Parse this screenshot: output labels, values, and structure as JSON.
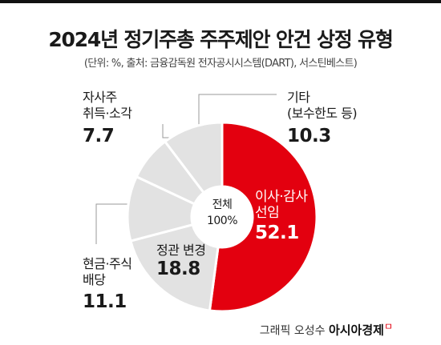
{
  "header": {
    "title": "2024년 정기주총 주주제안 안건 상정 유형",
    "subtitle": "(단위: %, 출처: 금융감독원 전자공시시스템(DART), 서스틴베스트)"
  },
  "center": {
    "line1": "전체",
    "line2": "100%"
  },
  "colors": {
    "highlight": "#e3000f",
    "other": "#e2e2e2",
    "separator": "#ffffff"
  },
  "chart_data": {
    "type": "pie",
    "title": "2024년 정기주총 주주제안 안건 상정 유형",
    "subtitle": "(단위: %, 출처: 금융감독원 전자공시시스템(DART), 서스틴베스트)",
    "unit": "%",
    "total_label": "전체 100%",
    "slices": [
      {
        "label": "이사·감사 선임",
        "lines": [
          "이사·감사",
          "선임"
        ],
        "value": 52.1,
        "highlight": true
      },
      {
        "label": "정관 변경",
        "lines": [
          "정관 변경"
        ],
        "value": 18.8,
        "highlight": false
      },
      {
        "label": "현금·주식 배당",
        "lines": [
          "현금·주식",
          "배당"
        ],
        "value": 11.1,
        "highlight": false
      },
      {
        "label": "자사주 취득·소각",
        "lines": [
          "자사주",
          "취득·소각"
        ],
        "value": 7.7,
        "highlight": false
      },
      {
        "label": "기타 (보수한도 등)",
        "lines": [
          "기타",
          "(보수한도 등)"
        ],
        "value": 10.3,
        "highlight": false
      }
    ]
  },
  "footer": {
    "credit": "그래픽 오성수",
    "brand": "아시아경제",
    "mark": "ㅁ"
  }
}
